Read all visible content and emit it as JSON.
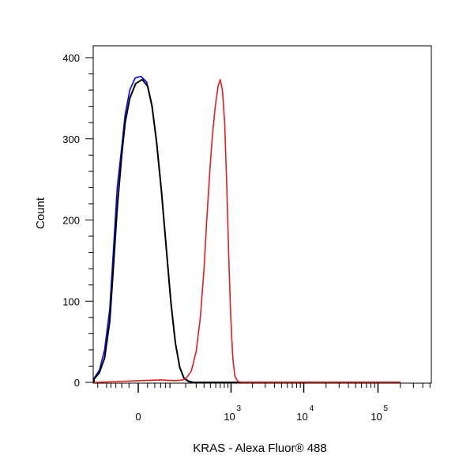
{
  "chart_data": {
    "type": "line",
    "title": "",
    "xlabel": "KRAS - Alexa Fluor® 488",
    "ylabel": "Count",
    "x_scale": "biexponential",
    "ylim": [
      0,
      420
    ],
    "y_ticks": [
      {
        "value": 0,
        "label": "0"
      },
      {
        "value": 100,
        "label": "100"
      },
      {
        "value": 200,
        "label": "200"
      },
      {
        "value": 300,
        "label": "300"
      },
      {
        "value": 400,
        "label": "400"
      }
    ],
    "x_ticks": [
      {
        "value": 0,
        "base": "0",
        "exp": ""
      },
      {
        "value": 1000,
        "base": "10",
        "exp": "3"
      },
      {
        "value": 10000,
        "base": "10",
        "exp": "4"
      },
      {
        "value": 100000,
        "base": "10",
        "exp": "5"
      }
    ],
    "grid": false,
    "legend": "none",
    "series": [
      {
        "color": "#0000ff",
        "points": [
          [
            -400,
            0
          ],
          [
            -250,
            1
          ],
          [
            -180,
            5
          ],
          [
            -140,
            15
          ],
          [
            -110,
            40
          ],
          [
            -85,
            90
          ],
          [
            -70,
            160
          ],
          [
            -55,
            240
          ],
          [
            -40,
            290
          ],
          [
            -30,
            330
          ],
          [
            -18,
            360
          ],
          [
            -6,
            375
          ],
          [
            5,
            377
          ],
          [
            18,
            370
          ],
          [
            30,
            345
          ],
          [
            45,
            300
          ],
          [
            62,
            240
          ],
          [
            82,
            170
          ],
          [
            104,
            100
          ],
          [
            128,
            50
          ],
          [
            155,
            20
          ],
          [
            185,
            6
          ],
          [
            220,
            2
          ],
          [
            270,
            0
          ],
          [
            200000,
            0
          ]
        ]
      },
      {
        "color": "#000000",
        "points": [
          [
            -400,
            0
          ],
          [
            -250,
            1
          ],
          [
            -180,
            4
          ],
          [
            -140,
            12
          ],
          [
            -110,
            30
          ],
          [
            -85,
            75
          ],
          [
            -70,
            140
          ],
          [
            -55,
            215
          ],
          [
            -40,
            280
          ],
          [
            -30,
            320
          ],
          [
            -18,
            350
          ],
          [
            -5,
            368
          ],
          [
            8,
            373
          ],
          [
            20,
            365
          ],
          [
            32,
            340
          ],
          [
            46,
            295
          ],
          [
            63,
            235
          ],
          [
            83,
            165
          ],
          [
            105,
            98
          ],
          [
            130,
            48
          ],
          [
            157,
            18
          ],
          [
            188,
            5
          ],
          [
            225,
            1
          ],
          [
            270,
            0
          ],
          [
            200000,
            0
          ]
        ]
      },
      {
        "color": "#e81c1c",
        "points": [
          [
            -400,
            0
          ],
          [
            -150,
            0
          ],
          [
            -60,
            1
          ],
          [
            0,
            2
          ],
          [
            60,
            3
          ],
          [
            130,
            2
          ],
          [
            180,
            3
          ],
          [
            210,
            6
          ],
          [
            250,
            14
          ],
          [
            300,
            38
          ],
          [
            350,
            80
          ],
          [
            400,
            140
          ],
          [
            440,
            200
          ],
          [
            490,
            260
          ],
          [
            530,
            300
          ],
          [
            590,
            340
          ],
          [
            650,
            365
          ],
          [
            700,
            373
          ],
          [
            750,
            360
          ],
          [
            810,
            320
          ],
          [
            870,
            240
          ],
          [
            930,
            150
          ],
          [
            990,
            80
          ],
          [
            1060,
            30
          ],
          [
            1130,
            8
          ],
          [
            1250,
            1
          ],
          [
            1500,
            0
          ],
          [
            200000,
            0
          ]
        ]
      }
    ]
  }
}
